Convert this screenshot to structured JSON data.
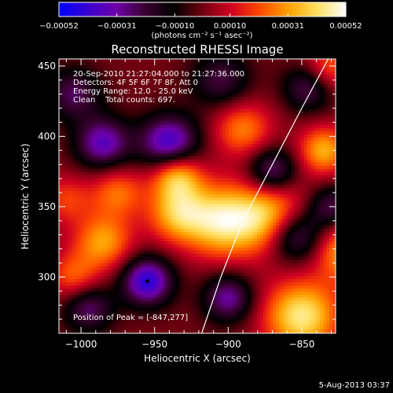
{
  "chart_data": {
    "type": "heatmap",
    "title": "Reconstructed RHESSI Image",
    "xlabel": "Heliocentric X (arcsec)",
    "ylabel": "Heliocentric Y (arcsec)",
    "xlim": [
      -1015,
      -827
    ],
    "ylim": [
      260,
      455
    ],
    "x_ticks": [
      -1000,
      -950,
      -900,
      -850
    ],
    "x_tick_labels": [
      "−1000",
      "−950",
      "−900",
      "−850"
    ],
    "y_ticks": [
      300,
      350,
      400,
      450
    ],
    "y_tick_labels": [
      "300",
      "350",
      "400",
      "450"
    ],
    "colorbar": {
      "range": [
        -0.00052,
        0.00052
      ],
      "ticks": [
        -0.00052,
        -0.00031,
        -0.0001,
        0.0001,
        0.00031,
        0.00052
      ],
      "tick_labels": [
        "−0.00052",
        "−0.00031",
        "−0.00010",
        "0.00010",
        "0.00031",
        "0.00052"
      ],
      "unit_label": "(photons cm⁻² s⁻¹ asec⁻²)",
      "colormap": [
        "#0000ff",
        "#3a00d0",
        "#6e00a8",
        "#3a0030",
        "#000000",
        "#700010",
        "#d00020",
        "#ff4a00",
        "#ffa000",
        "#ffe060",
        "#ffffff"
      ]
    },
    "annotations": [
      "20-Sep-2010 21:27:04.000 to 21:27:36.000",
      "Detectors: 4F 5F 6F 7F 8F, Att 0",
      "Energy Range: 12.0 - 25.0 keV",
      "Clean    Total counts: 697."
    ],
    "peak_label": "Position of Peak = [-847,277]",
    "peak": {
      "x": -847,
      "y": 277
    },
    "minimum_marker": {
      "x": -955,
      "y": 297
    },
    "limb_curve": [
      [
        -918,
        260
      ],
      [
        -905,
        300
      ],
      [
        -890,
        340
      ],
      [
        -870,
        380
      ],
      [
        -850,
        420
      ],
      [
        -832,
        455
      ]
    ],
    "field_components": [
      {
        "x": -850,
        "y": 272,
        "amp": 1.0,
        "w": 18
      },
      {
        "x": -820,
        "y": 318,
        "amp": 0.75,
        "w": 15
      },
      {
        "x": -870,
        "y": 342,
        "amp": 0.92,
        "w": 18
      },
      {
        "x": -905,
        "y": 340,
        "amp": 0.95,
        "w": 18
      },
      {
        "x": -935,
        "y": 345,
        "amp": 0.7,
        "w": 14
      },
      {
        "x": -985,
        "y": 325,
        "amp": 0.7,
        "w": 14
      },
      {
        "x": -1005,
        "y": 300,
        "amp": 0.5,
        "w": 12
      },
      {
        "x": -935,
        "y": 372,
        "amp": 0.85,
        "w": 12
      },
      {
        "x": -890,
        "y": 405,
        "amp": 0.6,
        "w": 14
      },
      {
        "x": -835,
        "y": 390,
        "amp": 0.75,
        "w": 12
      },
      {
        "x": -832,
        "y": 448,
        "amp": 0.55,
        "w": 12
      },
      {
        "x": -975,
        "y": 360,
        "amp": 0.55,
        "w": 13
      },
      {
        "x": -1010,
        "y": 355,
        "amp": 0.4,
        "w": 12
      },
      {
        "x": -955,
        "y": 297,
        "amp": -1.0,
        "w": 12
      },
      {
        "x": -900,
        "y": 285,
        "amp": -0.7,
        "w": 12
      },
      {
        "x": -855,
        "y": 330,
        "amp": -0.9,
        "w": 14
      },
      {
        "x": -940,
        "y": 395,
        "amp": -0.95,
        "w": 14
      },
      {
        "x": -985,
        "y": 395,
        "amp": -0.8,
        "w": 13
      },
      {
        "x": -995,
        "y": 278,
        "amp": -0.6,
        "w": 12
      },
      {
        "x": -870,
        "y": 375,
        "amp": -0.7,
        "w": 12
      },
      {
        "x": -845,
        "y": 435,
        "amp": -0.6,
        "w": 12
      },
      {
        "x": -1005,
        "y": 430,
        "amp": -0.55,
        "w": 13
      },
      {
        "x": -905,
        "y": 440,
        "amp": -0.5,
        "w": 14
      },
      {
        "x": -830,
        "y": 350,
        "amp": -0.55,
        "w": 11
      }
    ]
  },
  "footer": {
    "date": "5-Aug-2013 03:37"
  }
}
